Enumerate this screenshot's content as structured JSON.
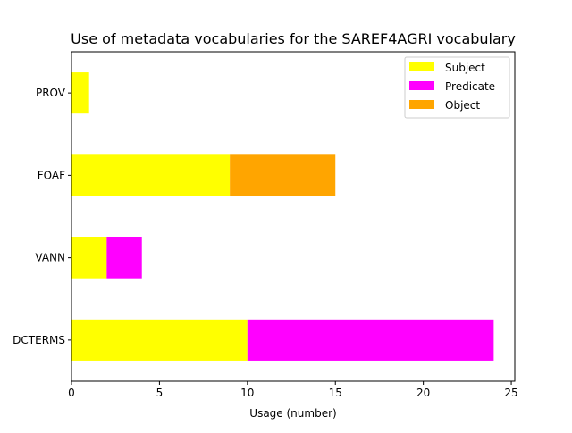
{
  "chart_data": {
    "type": "bar",
    "orientation": "horizontal",
    "stacked": true,
    "title": "Use of metadata vocabularies for the SAREF4AGRI vocabulary",
    "xlabel": "Usage (number)",
    "ylabel": "",
    "categories": [
      "DCTERMS",
      "VANN",
      "FOAF",
      "PROV"
    ],
    "series": [
      {
        "name": "Subject",
        "color": "#ffff00",
        "values": [
          10,
          2,
          9,
          1
        ]
      },
      {
        "name": "Predicate",
        "color": "#ff00ff",
        "values": [
          14,
          2,
          0,
          0
        ]
      },
      {
        "name": "Object",
        "color": "#ffa500",
        "values": [
          0,
          0,
          6,
          0
        ]
      }
    ],
    "xlim": [
      0,
      25.2
    ],
    "xticks": [
      0,
      5,
      10,
      15,
      20,
      25
    ],
    "grid": false,
    "legend_position": "top-right"
  }
}
